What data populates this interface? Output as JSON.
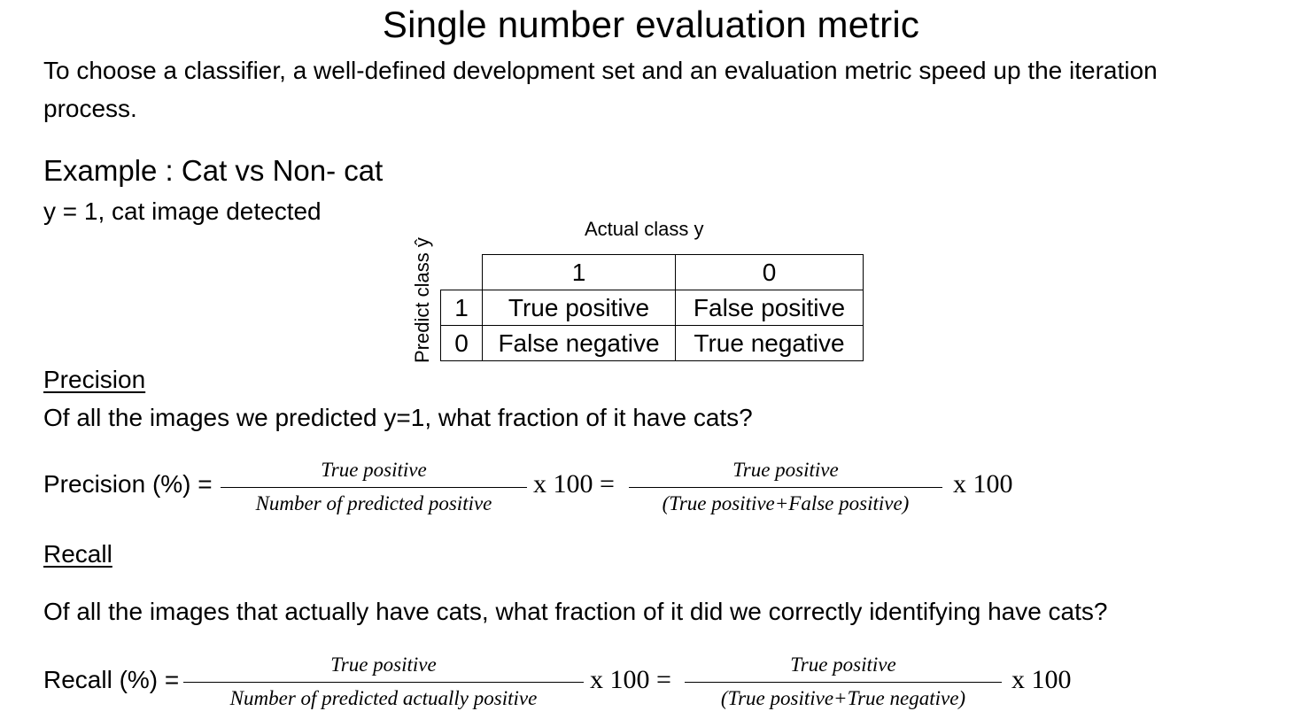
{
  "title": "Single number evaluation metric",
  "intro": {
    "line1": "To choose a classifier, a well-defined development set and an evaluation metric speed up the iteration",
    "line2": "process."
  },
  "example": {
    "heading": "Example : Cat vs Non- cat",
    "definition": "y = 1, cat image detected"
  },
  "confusion_matrix": {
    "predict_label": "Predict class ŷ",
    "actual_label": "Actual class y",
    "col_headers": [
      "1",
      "0"
    ],
    "rows": [
      {
        "label": "1",
        "cells": [
          "True positive",
          "False positive"
        ]
      },
      {
        "label": "0",
        "cells": [
          "False negative",
          "True negative"
        ]
      }
    ]
  },
  "precision": {
    "heading": "Precision",
    "question": "Of all the images we predicted y=1, what fraction of it have cats?",
    "lead": "Precision (%) =",
    "frac1_num": "True positive",
    "frac1_den": "Number of predicted positive",
    "times1": "x 100 =",
    "frac2_num": "True positive",
    "frac2_den": "(True positive+False positive)",
    "times2": "x 100"
  },
  "recall": {
    "heading": "Recall",
    "question": "Of all the images that actually have cats, what fraction of it did we correctly identifying have cats?",
    "lead": "Recall (%) =",
    "frac1_num": "True positive",
    "frac1_den": "Number of predicted actually positive",
    "times1": "x 100 =",
    "frac2_num": "True positive",
    "frac2_den": "(True positive+True negative)",
    "times2": "x 100"
  }
}
